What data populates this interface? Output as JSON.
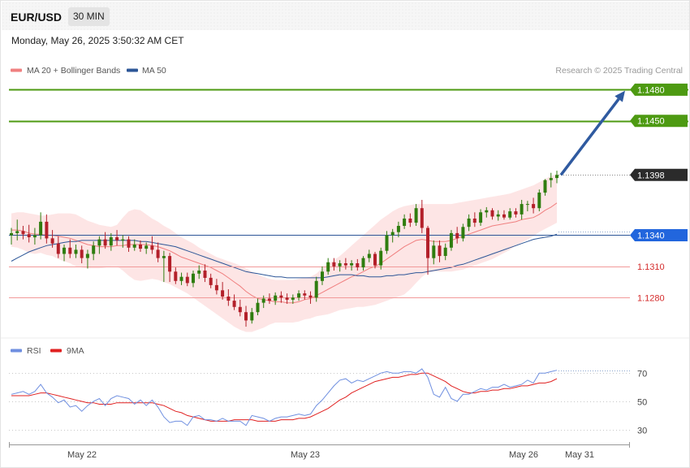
{
  "header": {
    "symbol": "EUR/USD",
    "timeframe": "30 MIN",
    "datetime": "Monday, May 26, 2025 3:50:32 AM CET"
  },
  "legend": {
    "ma20_label": "MA 20 + Bollinger Bands",
    "ma50_label": "MA 50",
    "credit": "Research © 2025 Trading Central"
  },
  "colors": {
    "target": "#4d9a12",
    "ma50": "#2c5697",
    "ma20": "#f08080",
    "band": "#fde0e0",
    "support": "#f29a9a",
    "support_text": "#d42b2b",
    "bull": "#2f7d0f",
    "bear": "#b3202a",
    "arrow": "#2f5aa0",
    "rsi": "#6f8fe0",
    "rsi_ma": "#e02020",
    "price_tag": "#2b2b2b",
    "ma50_tag": "#2266dd"
  },
  "chart_data": [
    {
      "type": "candlestick",
      "title": "EUR/USD 30 MIN",
      "ylim": [
        1.1238,
        1.1492
      ],
      "x_ticks": [
        "May 22",
        "May 23",
        "May 26",
        "May 31"
      ],
      "levels": [
        {
          "label": "1.1480",
          "value": 1.148,
          "kind": "resistance"
        },
        {
          "label": "1.1450",
          "value": 1.145,
          "kind": "resistance"
        },
        {
          "label": "1.1398",
          "value": 1.1398,
          "kind": "last_price"
        },
        {
          "label": "1.1340",
          "value": 1.134,
          "kind": "ma50"
        },
        {
          "label": "1.1310",
          "value": 1.131,
          "kind": "support"
        },
        {
          "label": "1.1280",
          "value": 1.128,
          "kind": "support"
        }
      ],
      "arrow": {
        "from": 1.1398,
        "to": 1.1479
      },
      "candles": [
        [
          1.134,
          1.1347,
          1.1331,
          1.1342
        ],
        [
          1.1342,
          1.1355,
          1.1335,
          1.1344
        ],
        [
          1.1344,
          1.1349,
          1.1336,
          1.1341
        ],
        [
          1.1341,
          1.135,
          1.1333,
          1.1338
        ],
        [
          1.1338,
          1.1347,
          1.1331,
          1.134
        ],
        [
          1.134,
          1.1362,
          1.1336,
          1.1353
        ],
        [
          1.1353,
          1.136,
          1.1332,
          1.1337
        ],
        [
          1.1337,
          1.1345,
          1.1328,
          1.1332
        ],
        [
          1.1332,
          1.1339,
          1.1318,
          1.1322
        ],
        [
          1.1322,
          1.1331,
          1.1315,
          1.1328
        ],
        [
          1.1328,
          1.1336,
          1.1318,
          1.1322
        ],
        [
          1.1322,
          1.1331,
          1.1318,
          1.1326
        ],
        [
          1.1326,
          1.133,
          1.1313,
          1.1318
        ],
        [
          1.1318,
          1.1326,
          1.1308,
          1.1322
        ],
        [
          1.1322,
          1.1334,
          1.1316,
          1.133
        ],
        [
          1.133,
          1.1339,
          1.1322,
          1.1336
        ],
        [
          1.1336,
          1.1343,
          1.1327,
          1.133
        ],
        [
          1.133,
          1.1342,
          1.1325,
          1.1338
        ],
        [
          1.1338,
          1.1345,
          1.133,
          1.1335
        ],
        [
          1.1335,
          1.134,
          1.1328,
          1.1336
        ],
        [
          1.1336,
          1.1339,
          1.1324,
          1.1328
        ],
        [
          1.1328,
          1.1336,
          1.1325,
          1.1331
        ],
        [
          1.1331,
          1.1335,
          1.1324,
          1.1327
        ],
        [
          1.1327,
          1.1333,
          1.1322,
          1.133
        ],
        [
          1.133,
          1.1339,
          1.1322,
          1.1326
        ],
        [
          1.1326,
          1.1333,
          1.1314,
          1.1318
        ],
        [
          1.1318,
          1.1325,
          1.1295,
          1.132
        ],
        [
          1.132,
          1.1323,
          1.1295,
          1.1305
        ],
        [
          1.1305,
          1.1309,
          1.1293,
          1.1296
        ],
        [
          1.1296,
          1.1304,
          1.1292,
          1.13
        ],
        [
          1.13,
          1.1304,
          1.1291,
          1.1294
        ],
        [
          1.1294,
          1.1306,
          1.129,
          1.1303
        ],
        [
          1.1303,
          1.1311,
          1.1298,
          1.1306
        ],
        [
          1.1306,
          1.1312,
          1.1295,
          1.1299
        ],
        [
          1.1299,
          1.1303,
          1.1289,
          1.1292
        ],
        [
          1.1292,
          1.1298,
          1.1283,
          1.1287
        ],
        [
          1.1287,
          1.1295,
          1.1278,
          1.1281
        ],
        [
          1.1281,
          1.1288,
          1.1272,
          1.1277
        ],
        [
          1.1277,
          1.1283,
          1.1268,
          1.1271
        ],
        [
          1.1271,
          1.1278,
          1.1262,
          1.1266
        ],
        [
          1.1266,
          1.1272,
          1.1252,
          1.1258
        ],
        [
          1.1258,
          1.127,
          1.1255,
          1.1266
        ],
        [
          1.1266,
          1.1279,
          1.1263,
          1.1275
        ],
        [
          1.1275,
          1.1282,
          1.127,
          1.1279
        ],
        [
          1.1279,
          1.1284,
          1.1274,
          1.1277
        ],
        [
          1.1277,
          1.1285,
          1.1273,
          1.1282
        ],
        [
          1.1282,
          1.1286,
          1.1275,
          1.128
        ],
        [
          1.128,
          1.1284,
          1.1274,
          1.1278
        ],
        [
          1.1278,
          1.1283,
          1.1274,
          1.128
        ],
        [
          1.128,
          1.1287,
          1.1277,
          1.1284
        ],
        [
          1.1284,
          1.1287,
          1.1278,
          1.1282
        ],
        [
          1.1282,
          1.1286,
          1.1274,
          1.128
        ],
        [
          1.128,
          1.13,
          1.1276,
          1.1296
        ],
        [
          1.1296,
          1.131,
          1.1292,
          1.1305
        ],
        [
          1.1305,
          1.1318,
          1.1302,
          1.1314
        ],
        [
          1.1314,
          1.1318,
          1.1306,
          1.131
        ],
        [
          1.131,
          1.1316,
          1.1305,
          1.1313
        ],
        [
          1.1313,
          1.1318,
          1.1307,
          1.1311
        ],
        [
          1.1311,
          1.1316,
          1.1306,
          1.1313
        ],
        [
          1.1313,
          1.1317,
          1.1306,
          1.1309
        ],
        [
          1.1309,
          1.132,
          1.1306,
          1.1318
        ],
        [
          1.1318,
          1.1326,
          1.1314,
          1.1322
        ],
        [
          1.1322,
          1.1324,
          1.1308,
          1.1311
        ],
        [
          1.1311,
          1.1328,
          1.1307,
          1.1325
        ],
        [
          1.1325,
          1.1344,
          1.1322,
          1.134
        ],
        [
          1.134,
          1.1346,
          1.1333,
          1.1343
        ],
        [
          1.1343,
          1.1353,
          1.1338,
          1.1349
        ],
        [
          1.1349,
          1.136,
          1.1346,
          1.1356
        ],
        [
          1.1356,
          1.1361,
          1.1348,
          1.1352
        ],
        [
          1.1352,
          1.137,
          1.1349,
          1.1366
        ],
        [
          1.1366,
          1.1374,
          1.1342,
          1.1347
        ],
        [
          1.1347,
          1.1349,
          1.1302,
          1.1318
        ],
        [
          1.1318,
          1.1335,
          1.1312,
          1.133
        ],
        [
          1.133,
          1.1335,
          1.1314,
          1.132
        ],
        [
          1.132,
          1.1332,
          1.1316,
          1.1328
        ],
        [
          1.1328,
          1.1345,
          1.1325,
          1.1342
        ],
        [
          1.1342,
          1.1348,
          1.1332,
          1.1337
        ],
        [
          1.1337,
          1.1351,
          1.1334,
          1.1348
        ],
        [
          1.1348,
          1.136,
          1.1344,
          1.1356
        ],
        [
          1.1356,
          1.1362,
          1.1348,
          1.1352
        ],
        [
          1.1352,
          1.1365,
          1.1349,
          1.1362
        ],
        [
          1.1362,
          1.1367,
          1.1357,
          1.1364
        ],
        [
          1.1364,
          1.1366,
          1.1355,
          1.1358
        ],
        [
          1.1358,
          1.1364,
          1.1354,
          1.136
        ],
        [
          1.136,
          1.1364,
          1.1355,
          1.1357
        ],
        [
          1.1357,
          1.1366,
          1.1355,
          1.1363
        ],
        [
          1.1363,
          1.1366,
          1.1357,
          1.136
        ],
        [
          1.136,
          1.1374,
          1.1355,
          1.137
        ],
        [
          1.137,
          1.1373,
          1.1363,
          1.137
        ],
        [
          1.137,
          1.1376,
          1.1361,
          1.1366
        ],
        [
          1.1366,
          1.1384,
          1.1363,
          1.1381
        ],
        [
          1.1381,
          1.1394,
          1.1378,
          1.1393
        ],
        [
          1.1393,
          1.14,
          1.1386,
          1.1395
        ],
        [
          1.1395,
          1.1402,
          1.139,
          1.1398
        ]
      ],
      "ma20": [
        1.1345,
        1.1345,
        1.1344,
        1.1342,
        1.1341,
        1.1341,
        1.134,
        1.134,
        1.1339,
        1.1338,
        1.1337,
        1.1335,
        1.1333,
        1.1331,
        1.133,
        1.1329,
        1.1329,
        1.1329,
        1.133,
        1.133,
        1.1331,
        1.1331,
        1.1331,
        1.1331,
        1.133,
        1.1329,
        1.1327,
        1.1325,
        1.1322,
        1.1319,
        1.1317,
        1.1315,
        1.1313,
        1.1311,
        1.1309,
        1.1306,
        1.1303,
        1.1299,
        1.1295,
        1.1291,
        1.1286,
        1.1282,
        1.1279,
        1.1278,
        1.1277,
        1.1276,
        1.1276,
        1.1275,
        1.1275,
        1.1276,
        1.1278,
        1.1279,
        1.1282,
        1.1285,
        1.1288,
        1.1291,
        1.1294,
        1.1297,
        1.13,
        1.1302,
        1.1305,
        1.1308,
        1.131,
        1.1313,
        1.1317,
        1.1321,
        1.1325,
        1.1329,
        1.1332,
        1.1335,
        1.1336,
        1.1335,
        1.1334,
        1.1334,
        1.1334,
        1.1335,
        1.1337,
        1.1339,
        1.1341,
        1.1343,
        1.1345,
        1.1347,
        1.1349,
        1.135,
        1.1351,
        1.1352,
        1.1353,
        1.1355,
        1.1356,
        1.1357,
        1.136,
        1.1364,
        1.1367,
        1.1371
      ],
      "ma50": [
        1.1315,
        1.1318,
        1.1321,
        1.1324,
        1.1326,
        1.1328,
        1.133,
        1.1331,
        1.1332,
        1.1333,
        1.1334,
        1.1334,
        1.1335,
        1.1335,
        1.1335,
        1.1335,
        1.1335,
        1.1335,
        1.1335,
        1.1335,
        1.1335,
        1.1335,
        1.1334,
        1.1334,
        1.1333,
        1.1332,
        1.1331,
        1.133,
        1.1329,
        1.1327,
        1.1325,
        1.1323,
        1.1321,
        1.1319,
        1.1317,
        1.1315,
        1.1313,
        1.1311,
        1.1309,
        1.1307,
        1.1305,
        1.1304,
        1.1303,
        1.1302,
        1.1301,
        1.13,
        1.13,
        1.1299,
        1.1299,
        1.1299,
        1.1299,
        1.1299,
        1.1299,
        1.1299,
        1.13,
        1.1301,
        1.1302,
        1.1302,
        1.1302,
        1.1301,
        1.1301,
        1.13,
        1.13,
        1.13,
        1.1301,
        1.1301,
        1.1302,
        1.1302,
        1.1303,
        1.1304,
        1.1304,
        1.1305,
        1.1306,
        1.1307,
        1.1308,
        1.1309,
        1.1311,
        1.1312,
        1.1314,
        1.1316,
        1.1318,
        1.132,
        1.1322,
        1.1324,
        1.1326,
        1.1328,
        1.133,
        1.1332,
        1.1334,
        1.1336,
        1.1337,
        1.1338,
        1.1339,
        1.1341
      ],
      "bb_upper": [
        1.1361,
        1.1362,
        1.1362,
        1.1361,
        1.136,
        1.1359,
        1.1359,
        1.136,
        1.1361,
        1.1361,
        1.1361,
        1.136,
        1.1357,
        1.1354,
        1.1352,
        1.135,
        1.1349,
        1.1348,
        1.135,
        1.1357,
        1.1363,
        1.1365,
        1.1364,
        1.136,
        1.1356,
        1.1353,
        1.1349,
        1.1346,
        1.1342,
        1.1338,
        1.1335,
        1.1332,
        1.1328,
        1.1325,
        1.1322,
        1.1319,
        1.1317,
        1.1315,
        1.1313,
        1.1311,
        1.1308,
        1.1305,
        1.1302,
        1.13,
        1.1298,
        1.1297,
        1.1297,
        1.1297,
        1.1297,
        1.1298,
        1.1299,
        1.13,
        1.1303,
        1.1308,
        1.1312,
        1.1316,
        1.132,
        1.1325,
        1.133,
        1.1335,
        1.134,
        1.1345,
        1.135,
        1.1355,
        1.1359,
        1.1363,
        1.1366,
        1.1368,
        1.1369,
        1.137,
        1.137,
        1.137,
        1.137,
        1.137,
        1.137,
        1.137,
        1.1371,
        1.1372,
        1.1373,
        1.1374,
        1.1375,
        1.1376,
        1.1377,
        1.1378,
        1.1379,
        1.138,
        1.1382,
        1.1384,
        1.1386,
        1.1388,
        1.1391,
        1.1394,
        1.1397,
        1.1399
      ],
      "bb_lower": [
        1.1329,
        1.1328,
        1.1326,
        1.1323,
        1.1322,
        1.1323,
        1.1321,
        1.132,
        1.1317,
        1.1315,
        1.1313,
        1.131,
        1.1309,
        1.1308,
        1.1308,
        1.1308,
        1.1309,
        1.131,
        1.131,
        1.1306,
        1.1301,
        1.1297,
        1.1296,
        1.1297,
        1.1298,
        1.1297,
        1.1295,
        1.1293,
        1.129,
        1.1287,
        1.1284,
        1.128,
        1.1276,
        1.1272,
        1.1268,
        1.1264,
        1.126,
        1.1256,
        1.1252,
        1.1249,
        1.1247,
        1.1247,
        1.1249,
        1.1251,
        1.1254,
        1.1256,
        1.1256,
        1.1256,
        1.1256,
        1.1257,
        1.1259,
        1.126,
        1.1262,
        1.1263,
        1.1264,
        1.1266,
        1.1268,
        1.1269,
        1.127,
        1.1271,
        1.1271,
        1.1272,
        1.1273,
        1.1275,
        1.1277,
        1.1279,
        1.1281,
        1.1283,
        1.1288,
        1.1294,
        1.13,
        1.1304,
        1.1305,
        1.1305,
        1.1305,
        1.1305,
        1.1306,
        1.1307,
        1.1309,
        1.1311,
        1.1313,
        1.1315,
        1.1317,
        1.132,
        1.1323,
        1.1326,
        1.133,
        1.1333,
        1.1336,
        1.1339,
        1.1343,
        1.1346,
        1.1349,
        1.1352
      ]
    },
    {
      "type": "line",
      "title": "RSI",
      "ylim": [
        23,
        77
      ],
      "y_ticks": [
        70,
        50,
        30
      ],
      "series": [
        {
          "name": "RSI",
          "values": [
            55,
            56,
            57,
            55,
            57,
            62,
            56,
            53,
            49,
            51,
            46,
            47,
            43,
            47,
            50,
            52,
            47,
            52,
            54,
            53,
            52,
            48,
            51,
            47,
            51,
            46,
            39,
            35,
            36,
            36,
            33,
            39,
            40,
            37,
            37,
            36,
            38,
            36,
            36,
            36,
            33,
            40,
            39,
            38,
            36,
            38,
            39,
            39,
            40,
            41,
            40,
            41,
            47,
            51,
            56,
            61,
            65,
            66,
            63,
            65,
            64,
            66,
            68,
            70,
            71,
            70,
            70,
            71,
            71,
            70,
            73,
            67,
            55,
            53,
            60,
            52,
            50,
            55,
            55,
            57,
            59,
            58,
            60,
            60,
            62,
            60,
            61,
            62,
            65,
            63,
            70,
            70,
            71,
            72
          ]
        },
        {
          "name": "9MA",
          "values": [
            54,
            54,
            54,
            54,
            55,
            56,
            56,
            55,
            54,
            53,
            52,
            51,
            50,
            49,
            49,
            48,
            48,
            48,
            49,
            49,
            49,
            49,
            49,
            49,
            49,
            48,
            47,
            45,
            43,
            42,
            40,
            39,
            38,
            37,
            36,
            36,
            36,
            36,
            37,
            37,
            37,
            37,
            36,
            36,
            36,
            36,
            37,
            37,
            37,
            38,
            38,
            39,
            41,
            43,
            45,
            48,
            51,
            53,
            56,
            58,
            60,
            62,
            64,
            65,
            66,
            67,
            67,
            68,
            69,
            69,
            70,
            70,
            68,
            66,
            64,
            61,
            59,
            57,
            56,
            56,
            57,
            57,
            58,
            58,
            59,
            59,
            60,
            61,
            61,
            62,
            63,
            63,
            64,
            66
          ]
        }
      ]
    }
  ]
}
